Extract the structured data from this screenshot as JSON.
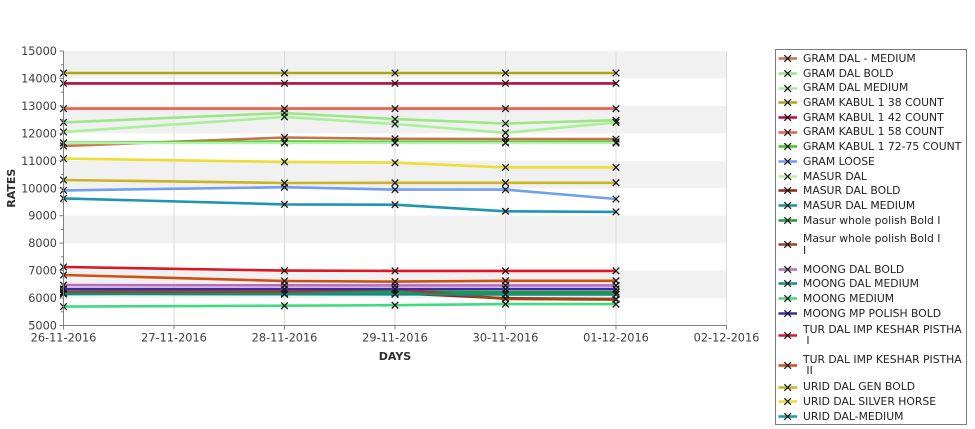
{
  "chart_data": {
    "type": "line",
    "xlabel": "DAYS",
    "ylabel": "RATES",
    "x_axis_labels": [
      "26-11-2016",
      "27-11-2016",
      "28-11-2016",
      "29-11-2016",
      "30-11-2016",
      "01-12-2016",
      "02-12-2016"
    ],
    "data_dates": [
      "26-11-2016",
      "28-11-2016",
      "29-11-2016",
      "30-11-2016",
      "01-12-2016"
    ],
    "data_x_index": [
      0,
      2,
      3,
      4,
      5
    ],
    "ylim": [
      5000,
      15000
    ],
    "y_tick_step": 1000,
    "grid": "alternating horizontal bands per 1000, vertical gridlines per day",
    "legend_position": "right",
    "series": [
      {
        "name": "GRAM DAL - MEDIUM",
        "color": "#c4744c",
        "values": [
          11540,
          11850,
          11800,
          11795,
          11790
        ]
      },
      {
        "name": "GRAM DAL BOLD",
        "color": "#9ae885",
        "values": [
          12400,
          12740,
          12520,
          12360,
          12480
        ]
      },
      {
        "name": "GRAM DAL MEDIUM",
        "color": "#aaf09b",
        "values": [
          12050,
          12600,
          12340,
          12020,
          12400
        ]
      },
      {
        "name": "GRAM KABUL 1 38 COUNT",
        "color": "#b2a513",
        "values": [
          14200,
          14200,
          14200,
          14200,
          14200
        ]
      },
      {
        "name": "GRAM KABUL 1 42 COUNT",
        "color": "#bb0a3c",
        "values": [
          13820,
          13820,
          13820,
          13820,
          13820
        ]
      },
      {
        "name": "GRAM KABUL 1 58 COUNT",
        "color": "#e2604d",
        "values": [
          12900,
          12900,
          12900,
          12900,
          12900
        ]
      },
      {
        "name": "GRAM KABUL 1 72-75 COUNT",
        "color": "#3ec81e",
        "values": [
          11660,
          11700,
          11690,
          11690,
          11690
        ]
      },
      {
        "name": "GRAM LOOSE",
        "color": "#6f9ef2",
        "values": [
          9920,
          10040,
          9950,
          9950,
          9610
        ]
      },
      {
        "name": "MASUR DAL",
        "color": "#b4f2ac",
        "values": [
          11650,
          11650,
          11650,
          11650,
          11650
        ]
      },
      {
        "name": "MASUR DAL BOLD",
        "color": "#8e2318",
        "values": [
          6190,
          6200,
          6180,
          5990,
          5960
        ]
      },
      {
        "name": "MASUR DAL MEDIUM",
        "color": "#17998c",
        "values": [
          6150,
          6170,
          6190,
          6215,
          6215
        ]
      },
      {
        "name": "Masur whole polish Bold I",
        "color": "#229a38",
        "values": [
          6310,
          6270,
          6250,
          6220,
          6220
        ]
      },
      {
        "name": "Masur whole polish Bold I I",
        "legend_lines": [
          "Masur whole polish Bold I",
          "I"
        ],
        "color": "#9c4316",
        "values": [
          6220,
          6230,
          6330,
          5970,
          5945
        ]
      },
      {
        "name": "MOONG DAL BOLD",
        "color": "#bd6abd",
        "values": [
          6470,
          6465,
          6460,
          6460,
          6460
        ]
      },
      {
        "name": "MOONG DAL MEDIUM",
        "color": "#128d80",
        "values": [
          6150,
          6140,
          6135,
          6130,
          6130
        ]
      },
      {
        "name": "MOONG MEDIUM",
        "color": "#40da80",
        "values": [
          5690,
          5720,
          5740,
          5780,
          5780
        ]
      },
      {
        "name": "MOONG MP POLISH BOLD",
        "color": "#4326ae",
        "values": [
          6330,
          6330,
          6330,
          6330,
          6330
        ]
      },
      {
        "name": "TUR DAL IMP KESHAR PISTHA I",
        "legend_lines": [
          "TUR DAL IMP KESHAR PISTHA",
          " I"
        ],
        "color": "#dd1525",
        "values": [
          7130,
          7000,
          6990,
          6990,
          6990
        ]
      },
      {
        "name": "TUR DAL IMP KESHAR PISTHA II",
        "legend_lines": [
          "TUR DAL IMP KESHAR PISTHA",
          " II"
        ],
        "color": "#d24e12",
        "values": [
          6840,
          6620,
          6600,
          6630,
          6630
        ]
      },
      {
        "name": "URID DAL GEN BOLD",
        "color": "#c9b423",
        "values": [
          10300,
          10190,
          10200,
          10200,
          10200
        ]
      },
      {
        "name": "URID DAL SILVER HORSE",
        "color": "#eedd35",
        "values": [
          11080,
          10960,
          10930,
          10760,
          10760
        ]
      },
      {
        "name": "URID DAL-MEDIUM",
        "color": "#1e96ad",
        "values": [
          9630,
          9410,
          9400,
          9160,
          9140
        ]
      }
    ]
  }
}
